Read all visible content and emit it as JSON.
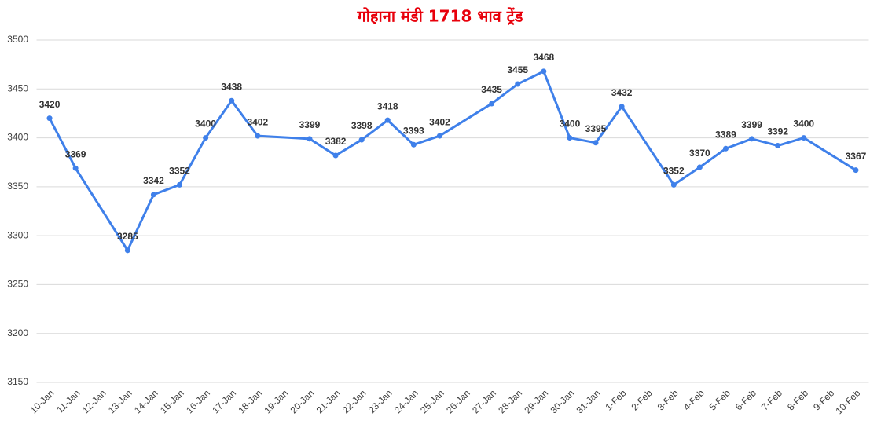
{
  "chart_data": {
    "type": "line",
    "title": "गोहाना मंडी 1718 भाव ट्रेंड",
    "categories": [
      "10-Jan",
      "11-Jan",
      "12-Jan",
      "13-Jan",
      "14-Jan",
      "15-Jan",
      "16-Jan",
      "17-Jan",
      "18-Jan",
      "19-Jan",
      "20-Jan",
      "21-Jan",
      "22-Jan",
      "23-Jan",
      "24-Jan",
      "25-Jan",
      "26-Jan",
      "27-Jan",
      "28-Jan",
      "29-Jan",
      "30-Jan",
      "31-Jan",
      "1-Feb",
      "2-Feb",
      "3-Feb",
      "4-Feb",
      "5-Feb",
      "6-Feb",
      "7-Feb",
      "8-Feb",
      "9-Feb",
      "10-Feb"
    ],
    "series": [
      {
        "name": "1718",
        "color": "#3f80ea",
        "values": [
          3420,
          3369,
          null,
          3285,
          3342,
          3352,
          3400,
          3438,
          3402,
          null,
          3399,
          3382,
          3398,
          3418,
          3393,
          3402,
          null,
          3435,
          3455,
          3468,
          3400,
          3395,
          3432,
          null,
          3352,
          3370,
          3389,
          3399,
          3392,
          3400,
          null,
          3367
        ]
      }
    ],
    "ylim": [
      3150,
      3500
    ],
    "yticks": [
      3150,
      3200,
      3250,
      3300,
      3350,
      3400,
      3450,
      3500
    ],
    "grid": true,
    "span_gaps": true,
    "data_labels": true
  }
}
